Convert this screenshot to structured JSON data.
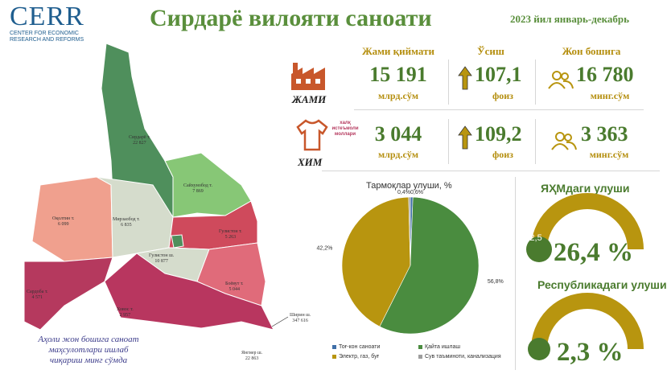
{
  "logo": {
    "name": "CERR",
    "subtitle": "Center for Economic Research and Reforms"
  },
  "header": {
    "title": "Сирдарё вилояти саноати",
    "period": "2023 йил январь-декабрь"
  },
  "metrics": {
    "col1": "Жами қиймати",
    "col2": "Ўсиш",
    "col3": "Жон бошига",
    "rows": [
      {
        "label": "ЖАМИ",
        "label2": "",
        "value": "15 191",
        "unit": "млрд.сўм",
        "growth": "107,1",
        "growth_unit": "фоиз",
        "per_capita": "16 780",
        "per_capita_unit": "минг.сўм"
      },
      {
        "label": "ХИМ",
        "label2": "халқ истеъмоли моллари",
        "value": "3 044",
        "unit": "млрд.сўм",
        "growth": "109,2",
        "growth_unit": "фоиз",
        "per_capita": "3 363",
        "per_capita_unit": "минг.сўм"
      }
    ]
  },
  "map": {
    "districts": [
      {
        "name": "Сирдарё т.",
        "value": "22 827"
      },
      {
        "name": "Сайхунобод т.",
        "value": "7 869"
      },
      {
        "name": "Оқолтин т.",
        "value": "6 099"
      },
      {
        "name": "Мирзаобод т.",
        "value": "6 835"
      },
      {
        "name": "Гулистон т.",
        "value": "5 263"
      },
      {
        "name": "Гулистон ш.",
        "value": "10 877"
      },
      {
        "name": "Боёвут т.",
        "value": "5 044"
      },
      {
        "name": "Сардоба т.",
        "value": "4 571"
      },
      {
        "name": "Ховос т.",
        "value": "2 957"
      },
      {
        "name": "Ширин ш.",
        "value": "347 616"
      },
      {
        "name": "Янгиер ш.",
        "value": "22 863"
      }
    ],
    "footnote": "Аҳоли жон бошига саноат маҳсулотлари ишлаб чиқариш минг сўмда"
  },
  "colors": {
    "green": "#4a7b2e",
    "gold": "#b58f10",
    "crimson": "#b5395e",
    "dark_green": "#4f8f5c"
  },
  "chart_data": [
    {
      "type": "pie",
      "title": "Тармоқлар улуши, %",
      "series": [
        {
          "name": "Тоғ-кон саноати",
          "value": 0.6,
          "label": "0,6%",
          "color": "#3f6fa8"
        },
        {
          "name": "Қайта ишлаш",
          "value": 56.8,
          "label": "56,8%",
          "color": "#4a8c3f"
        },
        {
          "name": "Электр, газ, буғ",
          "value": 42.2,
          "label": "42,2%",
          "color": "#b8950f"
        },
        {
          "name": "Сув таъминоти, канализация",
          "value": 0.4,
          "label": "0,4%",
          "color": "#9e9e9e"
        }
      ]
    },
    {
      "type": "gauge",
      "title": "ЯҲМдаги улуши",
      "value": 26.4,
      "value_label": "26,4",
      "unit": "%",
      "change_label": "+2,5"
    },
    {
      "type": "gauge",
      "title": "Республикадаги улуши",
      "value": 2.3,
      "value_label": "2,3",
      "unit": "%"
    }
  ]
}
